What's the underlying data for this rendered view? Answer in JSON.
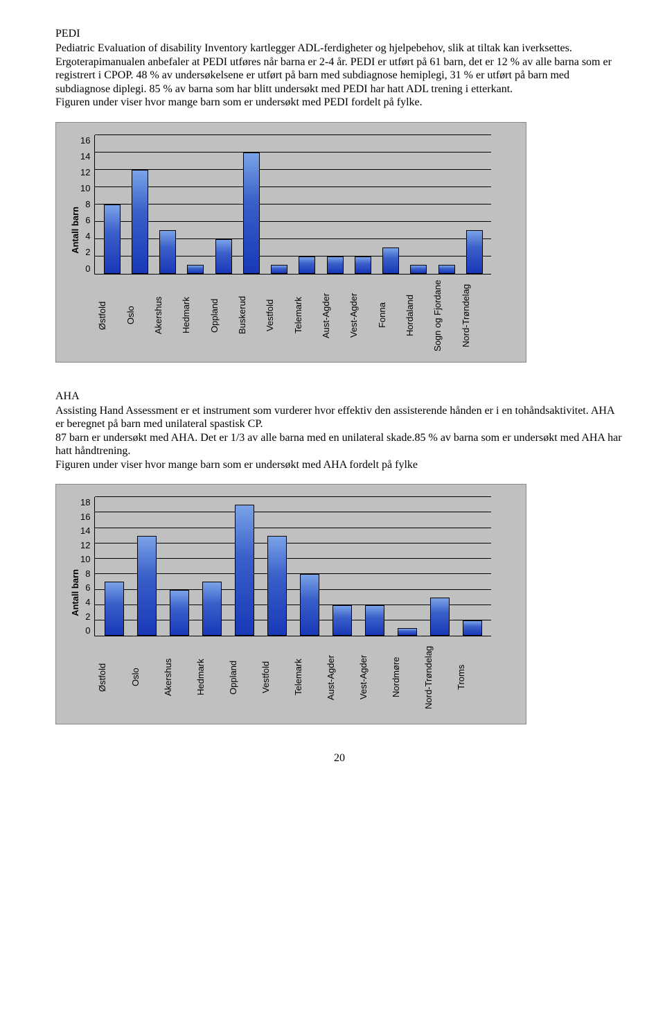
{
  "section1": {
    "title": "PEDI",
    "body": "Pediatric Evaluation of disability Inventory kartlegger ADL-ferdigheter og hjelpebehov, slik at tiltak kan iverksettes. Ergoterapimanualen anbefaler at PEDI utføres når barna er 2-4 år. PEDI er utført på 61 barn, det er 12 % av alle barna som er registrert i CPOP. 48 % av undersøkelsene er utført på barn med subdiagnose hemiplegi, 31 % er utført på barn med subdiagnose diplegi. 85 % av barna som har blitt undersøkt med PEDI har hatt ADL trening i etterkant.\nFiguren under viser hvor mange barn som er undersøkt med PEDI fordelt på fylke."
  },
  "chart1": {
    "type": "bar",
    "y_label": "Antall barn",
    "y_max": 16,
    "y_ticks": [
      16,
      14,
      12,
      10,
      8,
      6,
      4,
      2,
      0
    ],
    "bar_color": "#2e4fd0",
    "background": "#c0c0c0",
    "categories": [
      "Østfold",
      "Oslo",
      "Akershus",
      "Hedmark",
      "Oppland",
      "Buskerud",
      "Vestfold",
      "Telemark",
      "Aust-Agder",
      "Vest-Agder",
      "Fonna",
      "Hordaland",
      "Sogn og Fjordane",
      "Nord-Trøndelag"
    ],
    "values": [
      8,
      12,
      5,
      1,
      4,
      14,
      1,
      2,
      2,
      2,
      3,
      1,
      1,
      5
    ]
  },
  "section2": {
    "title": "AHA",
    "body": "Assisting Hand Assessment er et instrument som vurderer hvor effektiv den assisterende hånden er i en tohåndsaktivitet. AHA er beregnet på barn med unilateral spastisk CP.\n87 barn er undersøkt med AHA. Det er 1/3 av alle barna med en unilateral skade.85 % av barna som er undersøkt med AHA har hatt håndtrening.\nFiguren under viser hvor mange barn som er undersøkt med AHA fordelt på fylke"
  },
  "chart2": {
    "type": "bar",
    "y_label": "Antall barn",
    "y_max": 18,
    "y_ticks": [
      18,
      16,
      14,
      12,
      10,
      8,
      6,
      4,
      2,
      0
    ],
    "bar_color": "#2e4fd0",
    "background": "#c0c0c0",
    "categories": [
      "Østfold",
      "Oslo",
      "Akershus",
      "Hedmark",
      "Oppland",
      "Vestfold",
      "Telemark",
      "Aust-Agder",
      "Vest-Agder",
      "Nordmøre",
      "Nord-Trøndelag",
      "Troms"
    ],
    "values": [
      7,
      13,
      6,
      7,
      17,
      13,
      8,
      4,
      4,
      1,
      5,
      2
    ]
  },
  "page_number": "20"
}
